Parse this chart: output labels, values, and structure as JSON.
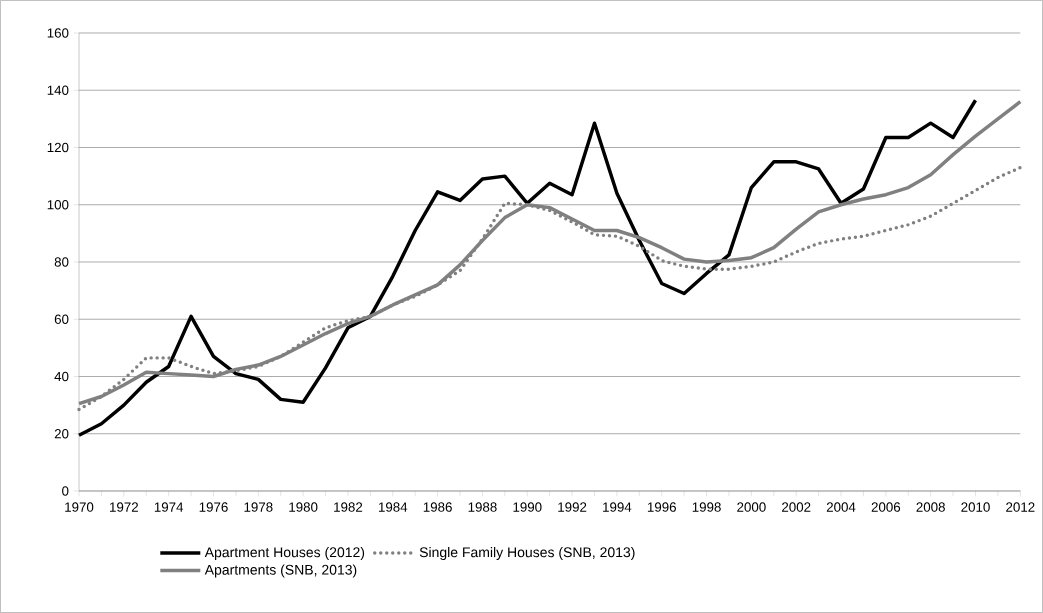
{
  "chart_data": {
    "type": "line",
    "x": [
      1970,
      1971,
      1972,
      1973,
      1974,
      1975,
      1976,
      1977,
      1978,
      1979,
      1980,
      1981,
      1982,
      1983,
      1984,
      1985,
      1986,
      1987,
      1988,
      1989,
      1990,
      1991,
      1992,
      1993,
      1994,
      1995,
      1996,
      1997,
      1998,
      1999,
      2000,
      2001,
      2002,
      2003,
      2004,
      2005,
      2006,
      2007,
      2008,
      2009,
      2010,
      2011,
      2012
    ],
    "series": [
      {
        "name": "Apartment Houses (2012)",
        "color": "#000000",
        "line_style": "solid",
        "values": [
          19.5,
          23.5,
          30,
          38,
          43.5,
          61,
          47,
          41,
          39,
          32,
          31,
          43,
          57,
          61,
          75,
          91,
          104.5,
          101.5,
          109,
          110,
          100.5,
          107.5,
          103.5,
          128.5,
          104,
          87.5,
          72.5,
          69,
          76,
          82.5,
          106,
          115,
          115,
          112.5,
          100.5,
          105.5,
          123.5,
          123.5,
          128.5,
          123.5,
          136.5,
          null,
          null
        ]
      },
      {
        "name": "Single Family Houses (SNB, 2013)",
        "color": "#808080",
        "line_style": "dotted",
        "values": [
          28.5,
          33,
          39,
          46.5,
          46.5,
          43.5,
          41,
          42,
          43.5,
          47,
          52,
          57,
          59.5,
          61,
          65,
          68,
          72,
          77,
          88,
          100.5,
          100,
          98,
          94,
          89.5,
          89,
          85.5,
          80.5,
          78.5,
          77.5,
          77.5,
          78.5,
          80,
          83.5,
          86.5,
          88,
          89,
          91,
          93,
          96,
          100.5,
          105,
          109.5,
          113
        ]
      },
      {
        "name": "Apartments (SNB, 2013)",
        "color": "#808080",
        "line_style": "solid",
        "values": [
          30.5,
          33,
          37,
          41.5,
          41,
          40.5,
          40,
          42.5,
          44,
          47,
          51,
          55,
          58.5,
          61,
          65,
          68.5,
          72,
          79,
          87.5,
          95.5,
          100,
          99,
          95,
          91,
          91,
          88.5,
          85,
          81,
          80,
          80.5,
          81.5,
          85,
          91.5,
          97.5,
          100,
          102,
          103.5,
          106,
          110.5,
          117.5,
          124,
          130,
          136
        ]
      }
    ],
    "xlim": [
      1970,
      2012
    ],
    "xticks": [
      1970,
      1972,
      1974,
      1976,
      1978,
      1980,
      1982,
      1984,
      1986,
      1988,
      1990,
      1992,
      1994,
      1996,
      1998,
      2000,
      2002,
      2004,
      2006,
      2008,
      2010,
      2012
    ],
    "ylim": [
      0,
      160
    ],
    "yticks": [
      0,
      20,
      40,
      60,
      80,
      100,
      120,
      140,
      160
    ],
    "grid": "y",
    "legend": "bottom"
  }
}
